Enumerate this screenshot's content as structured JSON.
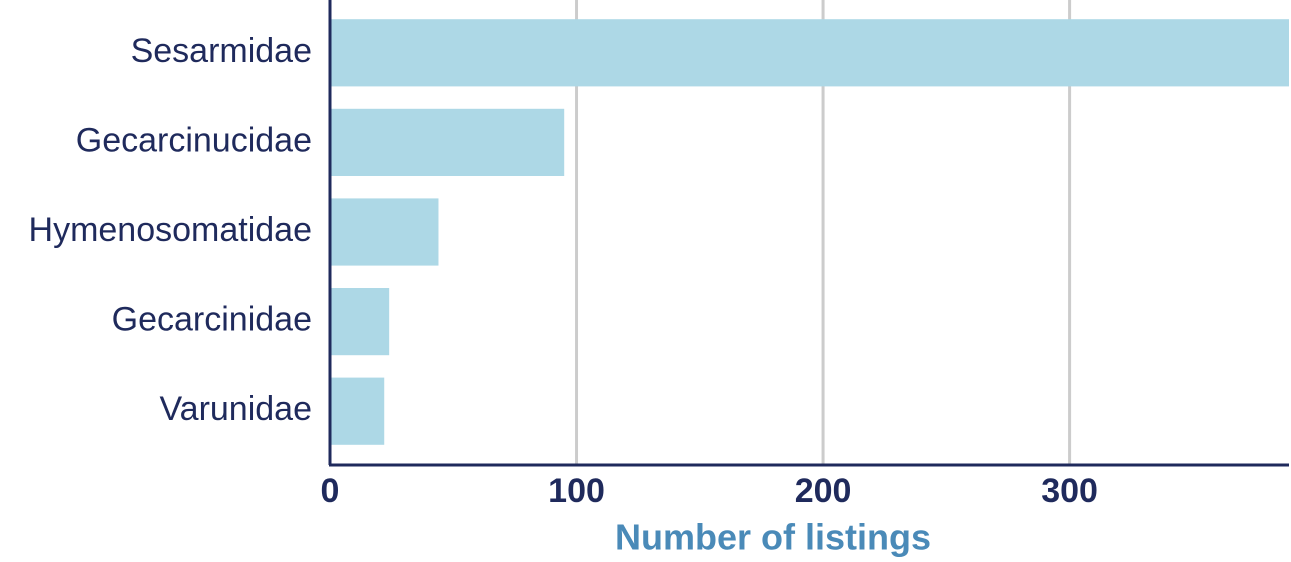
{
  "chart_data": {
    "type": "bar",
    "orientation": "horizontal",
    "x_label": "Number of listings",
    "categories": [
      "Sesarmidae",
      "Gecarcinucidae",
      "Hymenosomatidae",
      "Gecarcinidae",
      "Varunidae"
    ],
    "values": [
      389,
      95,
      44,
      24,
      22
    ],
    "color": "#add8e6",
    "xlim": [
      0,
      389
    ],
    "xticks": [
      0,
      100,
      200,
      300
    ],
    "grid": true
  }
}
